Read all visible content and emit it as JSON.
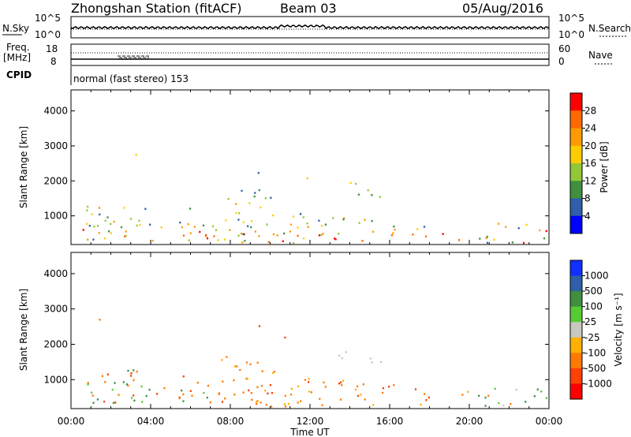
{
  "header": {
    "title": "Zhongshan Station (fitACF)",
    "beam": "Beam 03",
    "date": "05/Aug/2016"
  },
  "strip_top": {
    "left_label": "N.Sky",
    "right_label": "N.Search",
    "left_ticks": [
      "10^5",
      "10^0"
    ],
    "right_ticks": [
      "10^5",
      "10^0"
    ]
  },
  "strip_freq": {
    "left_label_line1": "Freq.",
    "left_label_line2": "[MHz]",
    "right_label": "Nave",
    "left_ticks": [
      "18",
      "8"
    ],
    "right_ticks": [
      "60",
      "0"
    ]
  },
  "cpid": {
    "label": "CPID",
    "text": "normal (fast stereo) 153"
  },
  "x_axis": {
    "label": "Time UT",
    "ticks": [
      "00:00",
      "04:00",
      "08:00",
      "12:00",
      "16:00",
      "20:00",
      "00:00"
    ]
  },
  "panel_power": {
    "ylabel": "Slant Range [km]",
    "cbar_label": "Power [dB]",
    "cbar_ticks": [
      "28",
      "24",
      "20",
      "16",
      "12",
      "8",
      "4"
    ],
    "cbar_colors": [
      "#ff0000",
      "#ff6a00",
      "#ff9a00",
      "#ffcc00",
      "#90c838",
      "#3f8f3f",
      "#2e5fa8",
      "#0000ff"
    ]
  },
  "panel_velocity": {
    "ylabel": "Slant Range [km]",
    "cbar_label": "Velocity [m s⁻¹]",
    "cbar_ticks": [
      "1000",
      "500",
      "100",
      "25",
      "-25",
      "-100",
      "-500",
      "-1000"
    ],
    "cbar_colors": [
      "#1030ff",
      "#2e5fa8",
      "#3f8f3f",
      "#55cc33",
      "#c8c8c0",
      "#ffb000",
      "#ff7a00",
      "#ff4000",
      "#ff0000"
    ]
  },
  "chart_data": {
    "type": "heatmap",
    "x_range_hours": [
      0,
      24
    ],
    "y_range_km": [
      180,
      4600
    ],
    "y_ticks_km": [
      1000,
      2000,
      3000,
      4000
    ],
    "power_colorbar_range_db": [
      0,
      32
    ],
    "velocity_colorbar_range": [
      -1000,
      1000
    ]
  }
}
